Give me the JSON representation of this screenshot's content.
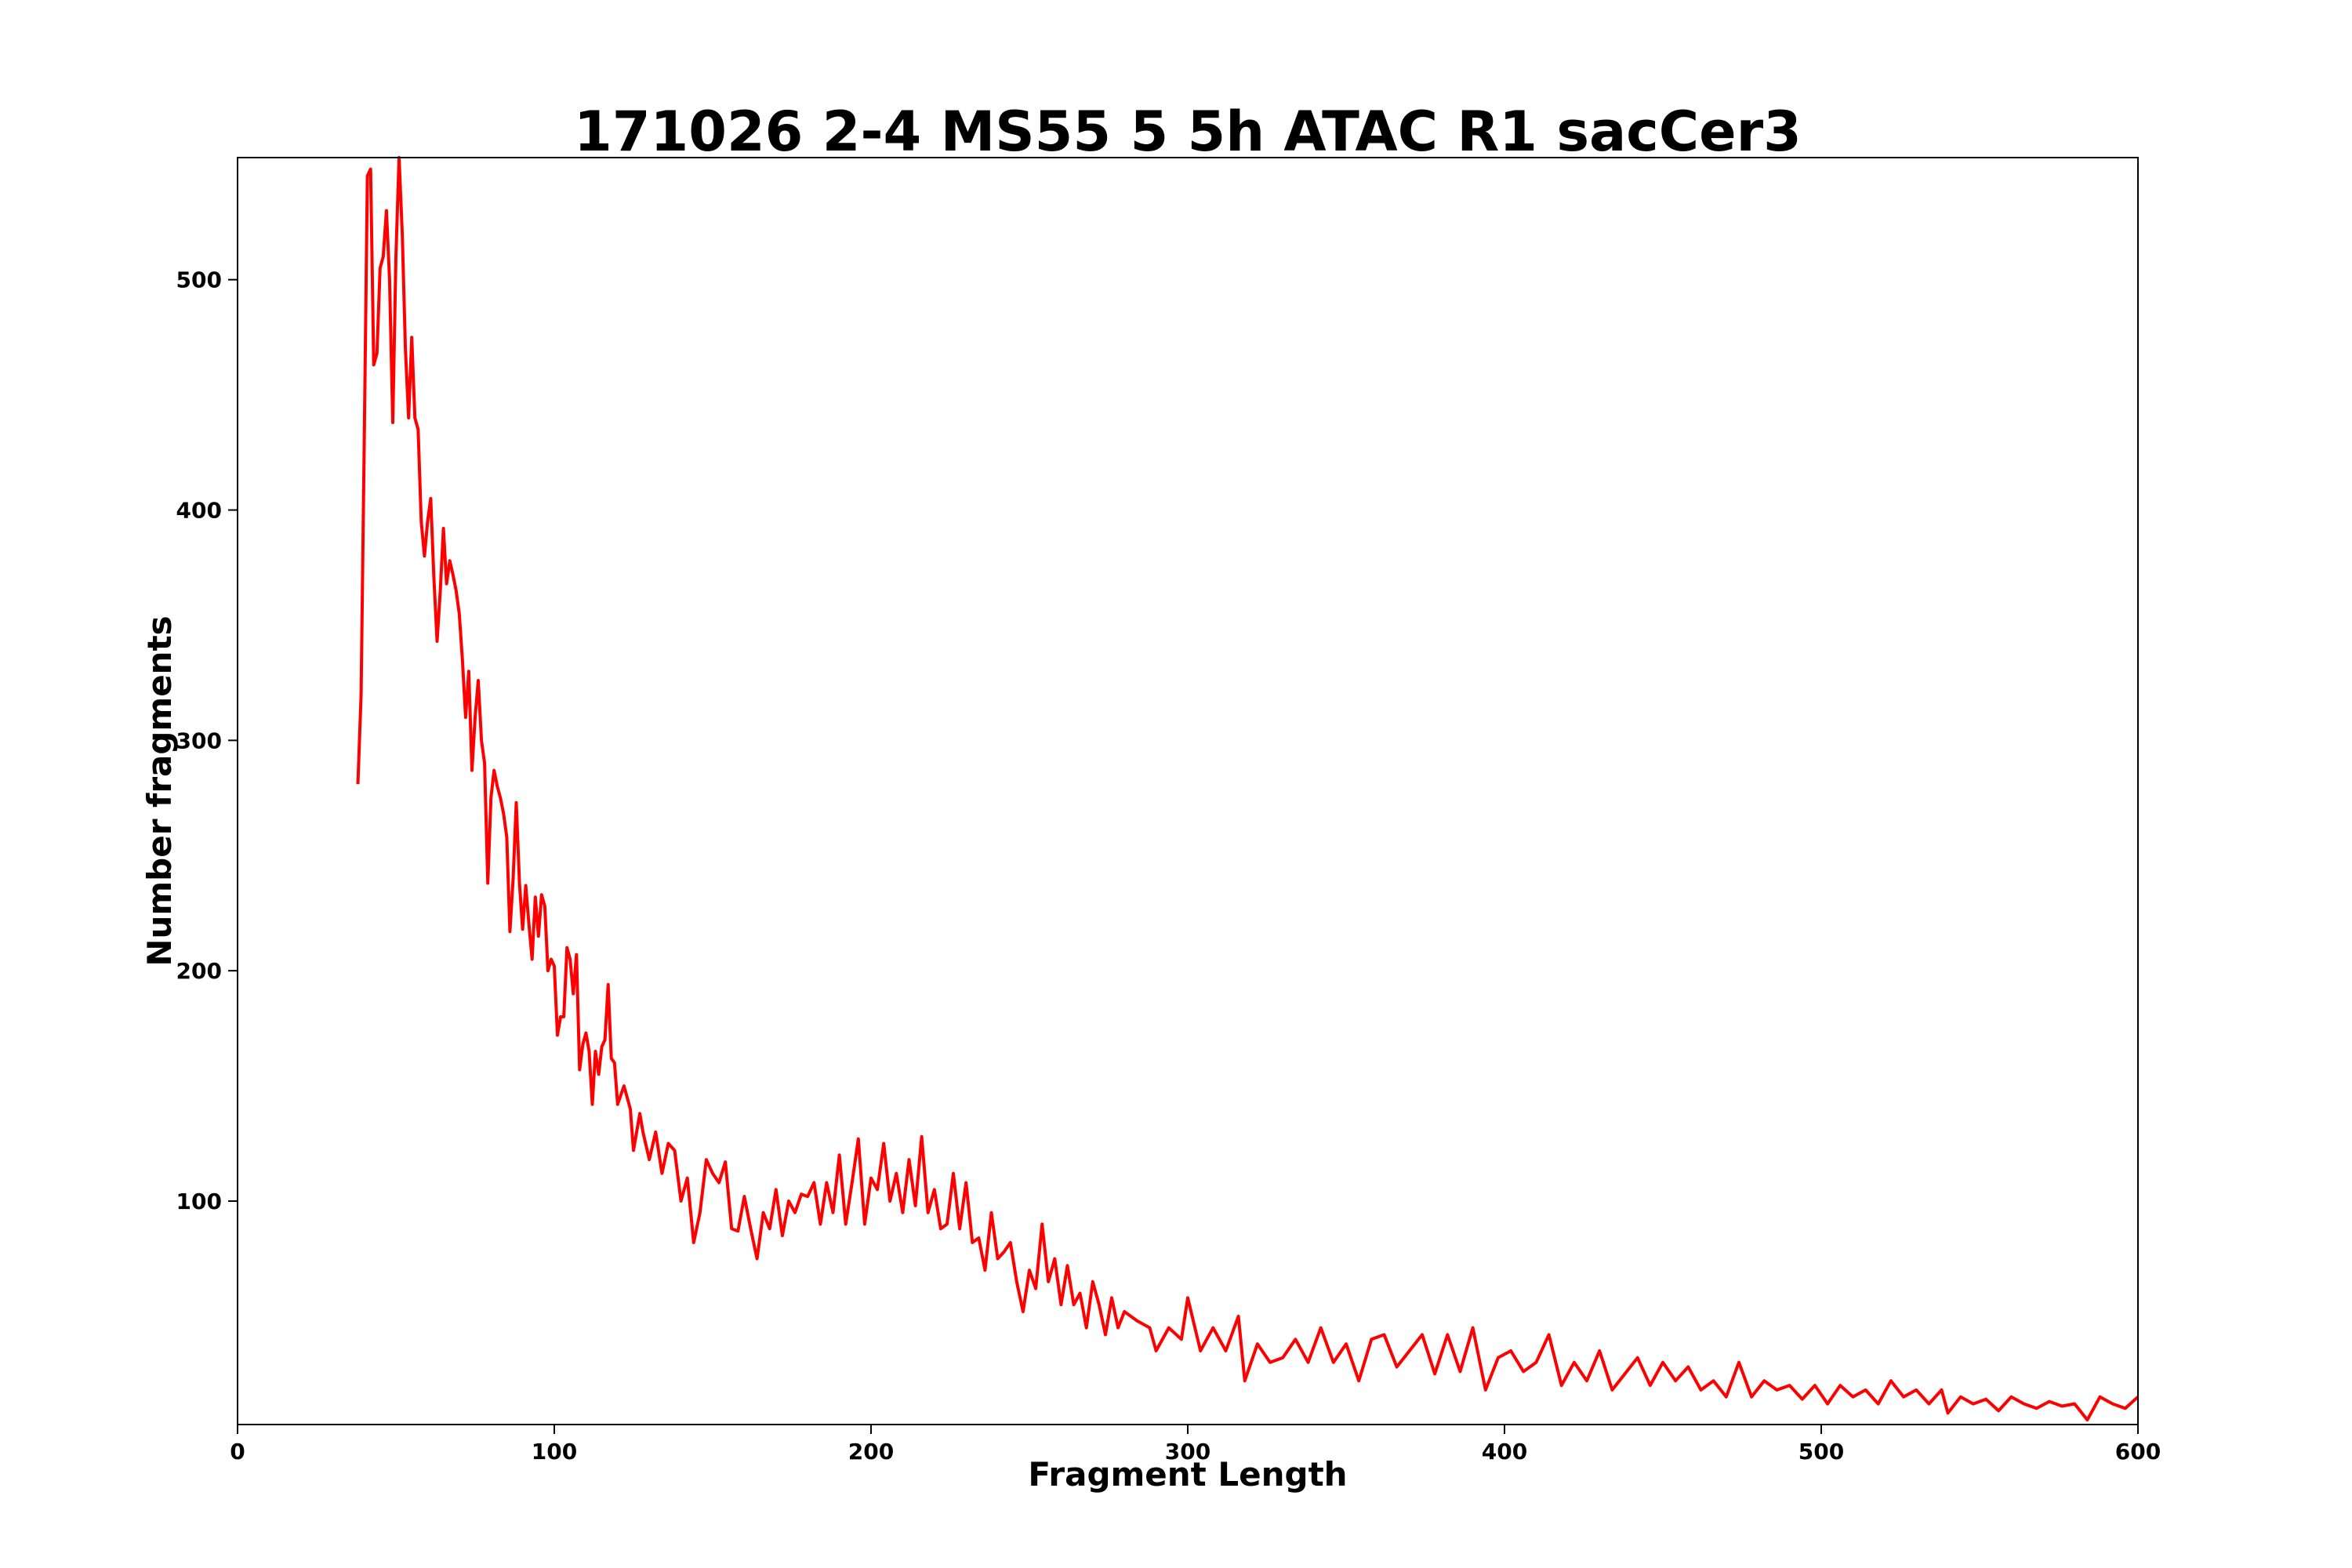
{
  "chart_data": {
    "type": "line",
    "title": "171026 2-4 MS55 5 5h ATAC R1 sacCer3",
    "xlabel": "Fragment Length",
    "ylabel": "Number fragments",
    "xlim": [
      0,
      600
    ],
    "ylim": [
      3,
      553
    ],
    "xticks": [
      0,
      100,
      200,
      300,
      400,
      500,
      600
    ],
    "yticks": [
      100,
      200,
      300,
      400,
      500
    ],
    "grid": false,
    "series": [
      {
        "name": "fragments",
        "color": "#ff0000",
        "x": [
          38,
          39,
          40,
          41,
          42,
          43,
          44,
          45,
          46,
          47,
          48,
          49,
          50,
          51,
          52,
          53,
          54,
          55,
          56,
          57,
          58,
          59,
          60,
          61,
          62,
          63,
          64,
          65,
          66,
          67,
          68,
          69,
          70,
          71,
          72,
          73,
          74,
          75,
          76,
          77,
          78,
          79,
          80,
          81,
          82,
          83,
          84,
          85,
          86,
          87,
          88,
          89,
          90,
          91,
          92,
          93,
          94,
          95,
          96,
          97,
          98,
          99,
          100,
          101,
          102,
          103,
          104,
          105,
          106,
          107,
          108,
          109,
          110,
          111,
          112,
          113,
          114,
          115,
          116,
          117,
          118,
          119,
          120,
          122,
          124,
          125,
          127,
          128,
          130,
          132,
          134,
          136,
          138,
          140,
          142,
          144,
          146,
          148,
          150,
          152,
          154,
          156,
          158,
          160,
          162,
          164,
          166,
          168,
          170,
          172,
          174,
          176,
          178,
          180,
          182,
          184,
          186,
          188,
          190,
          192,
          194,
          196,
          198,
          200,
          202,
          204,
          206,
          208,
          210,
          212,
          214,
          216,
          218,
          220,
          222,
          224,
          226,
          228,
          230,
          232,
          234,
          236,
          238,
          240,
          242,
          244,
          246,
          248,
          250,
          252,
          254,
          256,
          258,
          260,
          262,
          264,
          266,
          268,
          270,
          272,
          274,
          276,
          278,
          280,
          284,
          288,
          290,
          294,
          298,
          300,
          304,
          308,
          312,
          316,
          318,
          322,
          326,
          330,
          334,
          338,
          342,
          346,
          350,
          354,
          358,
          362,
          366,
          370,
          374,
          378,
          382,
          386,
          390,
          394,
          398,
          402,
          406,
          410,
          414,
          418,
          422,
          426,
          430,
          434,
          438,
          442,
          446,
          450,
          454,
          458,
          462,
          466,
          470,
          474,
          478,
          482,
          486,
          490,
          494,
          498,
          502,
          506,
          510,
          514,
          518,
          522,
          526,
          530,
          534,
          538,
          540,
          544,
          548,
          552,
          556,
          560,
          564,
          568,
          572,
          576,
          580,
          584,
          588,
          592,
          596,
          600
        ],
        "values": [
          281,
          320,
          430,
          545,
          548,
          463,
          468,
          505,
          510,
          530,
          500,
          438,
          510,
          553,
          520,
          470,
          440,
          475,
          440,
          435,
          395,
          380,
          395,
          405,
          370,
          343,
          365,
          392,
          368,
          378,
          372,
          365,
          355,
          335,
          310,
          330,
          287,
          310,
          326,
          300,
          290,
          238,
          275,
          287,
          280,
          275,
          268,
          258,
          217,
          240,
          273,
          238,
          218,
          237,
          220,
          205,
          232,
          215,
          233,
          228,
          200,
          205,
          202,
          172,
          180,
          180,
          210,
          205,
          190,
          207,
          157,
          168,
          173,
          165,
          142,
          165,
          155,
          167,
          170,
          194,
          162,
          160,
          142,
          150,
          140,
          122,
          138,
          130,
          118,
          130,
          112,
          125,
          122,
          100,
          110,
          82,
          95,
          118,
          112,
          108,
          117,
          88,
          87,
          102,
          88,
          75,
          95,
          88,
          105,
          85,
          100,
          95,
          103,
          102,
          108,
          90,
          108,
          95,
          120,
          90,
          108,
          127,
          90,
          110,
          105,
          125,
          100,
          112,
          95,
          118,
          98,
          128,
          95,
          105,
          88,
          90,
          112,
          88,
          108,
          82,
          84,
          70,
          95,
          75,
          78,
          82,
          65,
          52,
          70,
          62,
          90,
          65,
          75,
          55,
          72,
          55,
          60,
          45,
          65,
          55,
          42,
          58,
          45,
          52,
          48,
          45,
          35,
          45,
          40,
          58,
          35,
          45,
          35,
          50,
          22,
          38,
          30,
          32,
          40,
          30,
          45,
          30,
          38,
          22,
          40,
          42,
          28,
          35,
          42,
          25,
          42,
          26,
          45,
          18,
          32,
          35,
          26,
          30,
          42,
          20,
          30,
          22,
          35,
          18,
          25,
          32,
          20,
          30,
          22,
          28,
          18,
          22,
          15,
          30,
          15,
          22,
          18,
          20,
          14,
          20,
          12,
          20,
          15,
          18,
          12,
          22,
          15,
          18,
          12,
          18,
          8,
          15,
          12,
          14,
          9,
          15,
          12,
          10,
          13,
          11,
          12,
          5,
          15,
          12,
          10,
          15
        ]
      }
    ]
  }
}
